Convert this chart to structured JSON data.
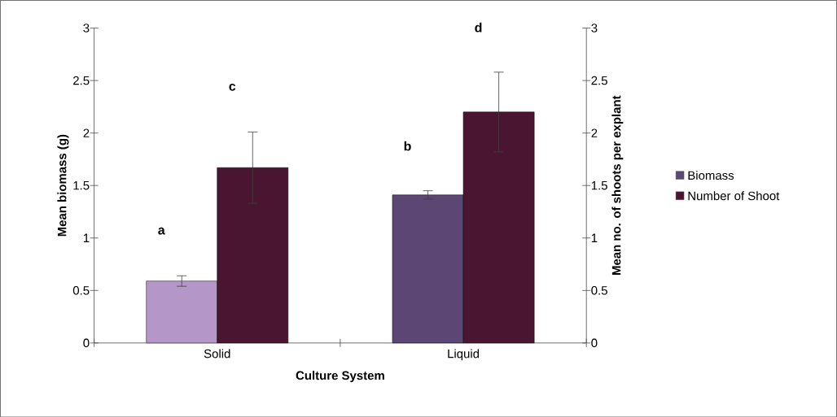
{
  "chart_data": {
    "type": "bar",
    "categories": [
      "Solid",
      "Liquid"
    ],
    "xlabel": "Culture System",
    "ylabel": "Mean biomass (g)",
    "y2label": "Mean no. of shoots per explant",
    "ylim": [
      0,
      3
    ],
    "yticks": [
      0,
      0.5,
      1,
      1.5,
      2,
      2.5,
      3
    ],
    "y2lim": [
      0,
      3
    ],
    "y2ticks": [
      0,
      0.5,
      1,
      1.5,
      2,
      2.5,
      3
    ],
    "legend": "right",
    "series": [
      {
        "name": "Biomass",
        "color": "#5c4673",
        "colors": [
          "#b496c8",
          "#5c4673"
        ],
        "values": [
          0.59,
          1.41
        ],
        "errors": [
          0.05,
          0.04
        ]
      },
      {
        "name": "Number of Shoot",
        "color": "#4a1530",
        "values": [
          1.67,
          2.2
        ],
        "errors": [
          0.34,
          0.38
        ],
        "axis": "y2"
      }
    ],
    "annotations": [
      "a",
      "c",
      "b",
      "d"
    ]
  }
}
